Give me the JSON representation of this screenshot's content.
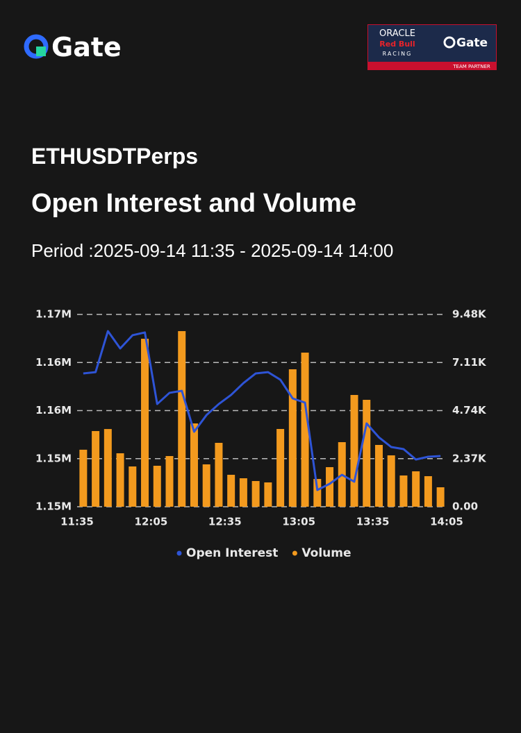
{
  "header": {
    "logo": "Gate",
    "partner": {
      "line1": "ORACLE",
      "line2": "Red Bull",
      "line3": "RACING",
      "logo": "Gate",
      "tag": "TEAM PARTNER"
    }
  },
  "chart_data": {
    "type": "bar-line",
    "supertitle": "ETHUSDTPerps",
    "title": "Open Interest and Volume",
    "subtitle": "Period :2025-09-14 11:35 - 2025-09-14 14:00",
    "xticks": [
      "11:35",
      "12:05",
      "12:35",
      "13:05",
      "13:35",
      "14:05"
    ],
    "series": [
      {
        "name": "Open Interest",
        "color": "#2e54d6",
        "kind": "line",
        "axis": "y",
        "values": [
          1162750,
          1162900,
          1167590,
          1165610,
          1167120,
          1167440,
          1159250,
          1160530,
          1160760,
          1156080,
          1157980,
          1159250,
          1160290,
          1161640,
          1162750,
          1162900,
          1162030,
          1159890,
          1159410,
          1149410,
          1150120,
          1151150,
          1150360,
          1157030,
          1155440,
          1154330,
          1154090,
          1152900,
          1153220,
          1153300
        ]
      },
      {
        "name": "Volume",
        "color": "#f39a1e",
        "kind": "bar",
        "axis": "y2",
        "values": [
          2810,
          3730,
          3830,
          2635,
          1985,
          8282,
          2019,
          2498,
          8658,
          4107,
          2088,
          3149,
          1574,
          1403,
          1266,
          1198,
          3833,
          6776,
          7598,
          1369,
          1951,
          3183,
          5510,
          5270,
          3046,
          2533,
          1540,
          1745,
          1506,
          958
        ]
      }
    ],
    "ylim": [
      1147500,
      1169500
    ],
    "yticks": [
      {
        "value": 1147500,
        "label": "1.15M"
      },
      {
        "value": 1153000,
        "label": "1.15M"
      },
      {
        "value": 1158500,
        "label": "1.16M"
      },
      {
        "value": 1164000,
        "label": "1.16M"
      },
      {
        "value": 1169500,
        "label": "1.17M"
      }
    ],
    "y2lim": [
      0,
      9480
    ],
    "y2ticks": [
      {
        "value": 0,
        "label": "0.00"
      },
      {
        "value": 2370,
        "label": "2.37K"
      },
      {
        "value": 4740,
        "label": "4.74K"
      },
      {
        "value": 7110,
        "label": "7.11K"
      },
      {
        "value": 9480,
        "label": "9.48K"
      }
    ],
    "grid": true,
    "legend": "bottom"
  }
}
